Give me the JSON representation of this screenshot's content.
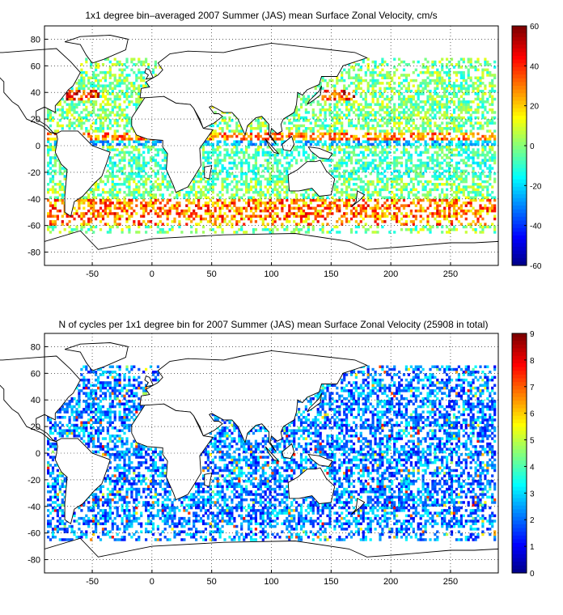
{
  "panels": [
    {
      "title": "1x1 degree bin–averaged 2007 Summer (JAS) mean Surface Zonal Velocity, cm/s",
      "colorbar": {
        "min": -60,
        "max": 60,
        "ticks": [
          "60",
          "40",
          "20",
          "0",
          "-20",
          "-40",
          "-60"
        ]
      },
      "field": "zonal_velocity"
    },
    {
      "title": "N of cycles per 1x1 degree bin for 2007 Summer (JAS) mean Surface Zonal Velocity (25908 in total)",
      "colorbar": {
        "min": 0,
        "max": 9,
        "ticks": [
          "9",
          "8",
          "7",
          "6",
          "5",
          "4",
          "3",
          "2",
          "1",
          "0"
        ]
      },
      "field": "cycle_count"
    }
  ],
  "axes": {
    "x_ticks": [
      "-50",
      "0",
      "50",
      "100",
      "150",
      "200",
      "250"
    ],
    "y_ticks": [
      "80",
      "60",
      "40",
      "20",
      "0",
      "-20",
      "-40",
      "-60",
      "-80"
    ],
    "x_range": [
      -90,
      290
    ],
    "y_range": [
      -90,
      90
    ],
    "grid": "dotted"
  },
  "colors": {
    "colormap": "jet",
    "coastline": "#000000",
    "land": "#ffffff"
  }
}
